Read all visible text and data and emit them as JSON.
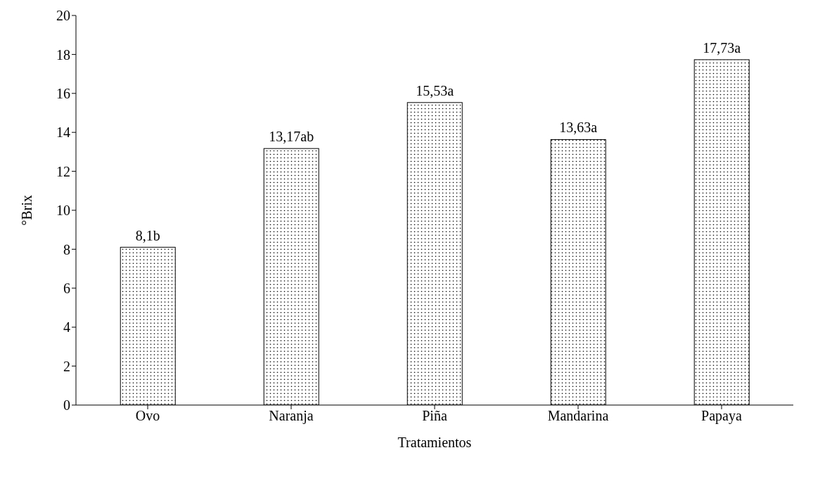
{
  "chart_data": {
    "type": "bar",
    "xlabel": "Tratamientos",
    "ylabel": "°Brix",
    "categories": [
      "Ovo",
      "Naranja",
      "Piña",
      "Mandarina",
      "Papaya"
    ],
    "values": [
      8.1,
      13.17,
      15.53,
      13.63,
      17.73
    ],
    "value_labels": [
      "8,1b",
      "13,17ab",
      "15,53a",
      "13,63a",
      "17,73a"
    ],
    "color": "#000000",
    "ylim": [
      0,
      20
    ],
    "yticks": [
      0,
      2,
      4,
      6,
      8,
      10,
      12,
      14,
      16,
      18,
      20
    ]
  }
}
